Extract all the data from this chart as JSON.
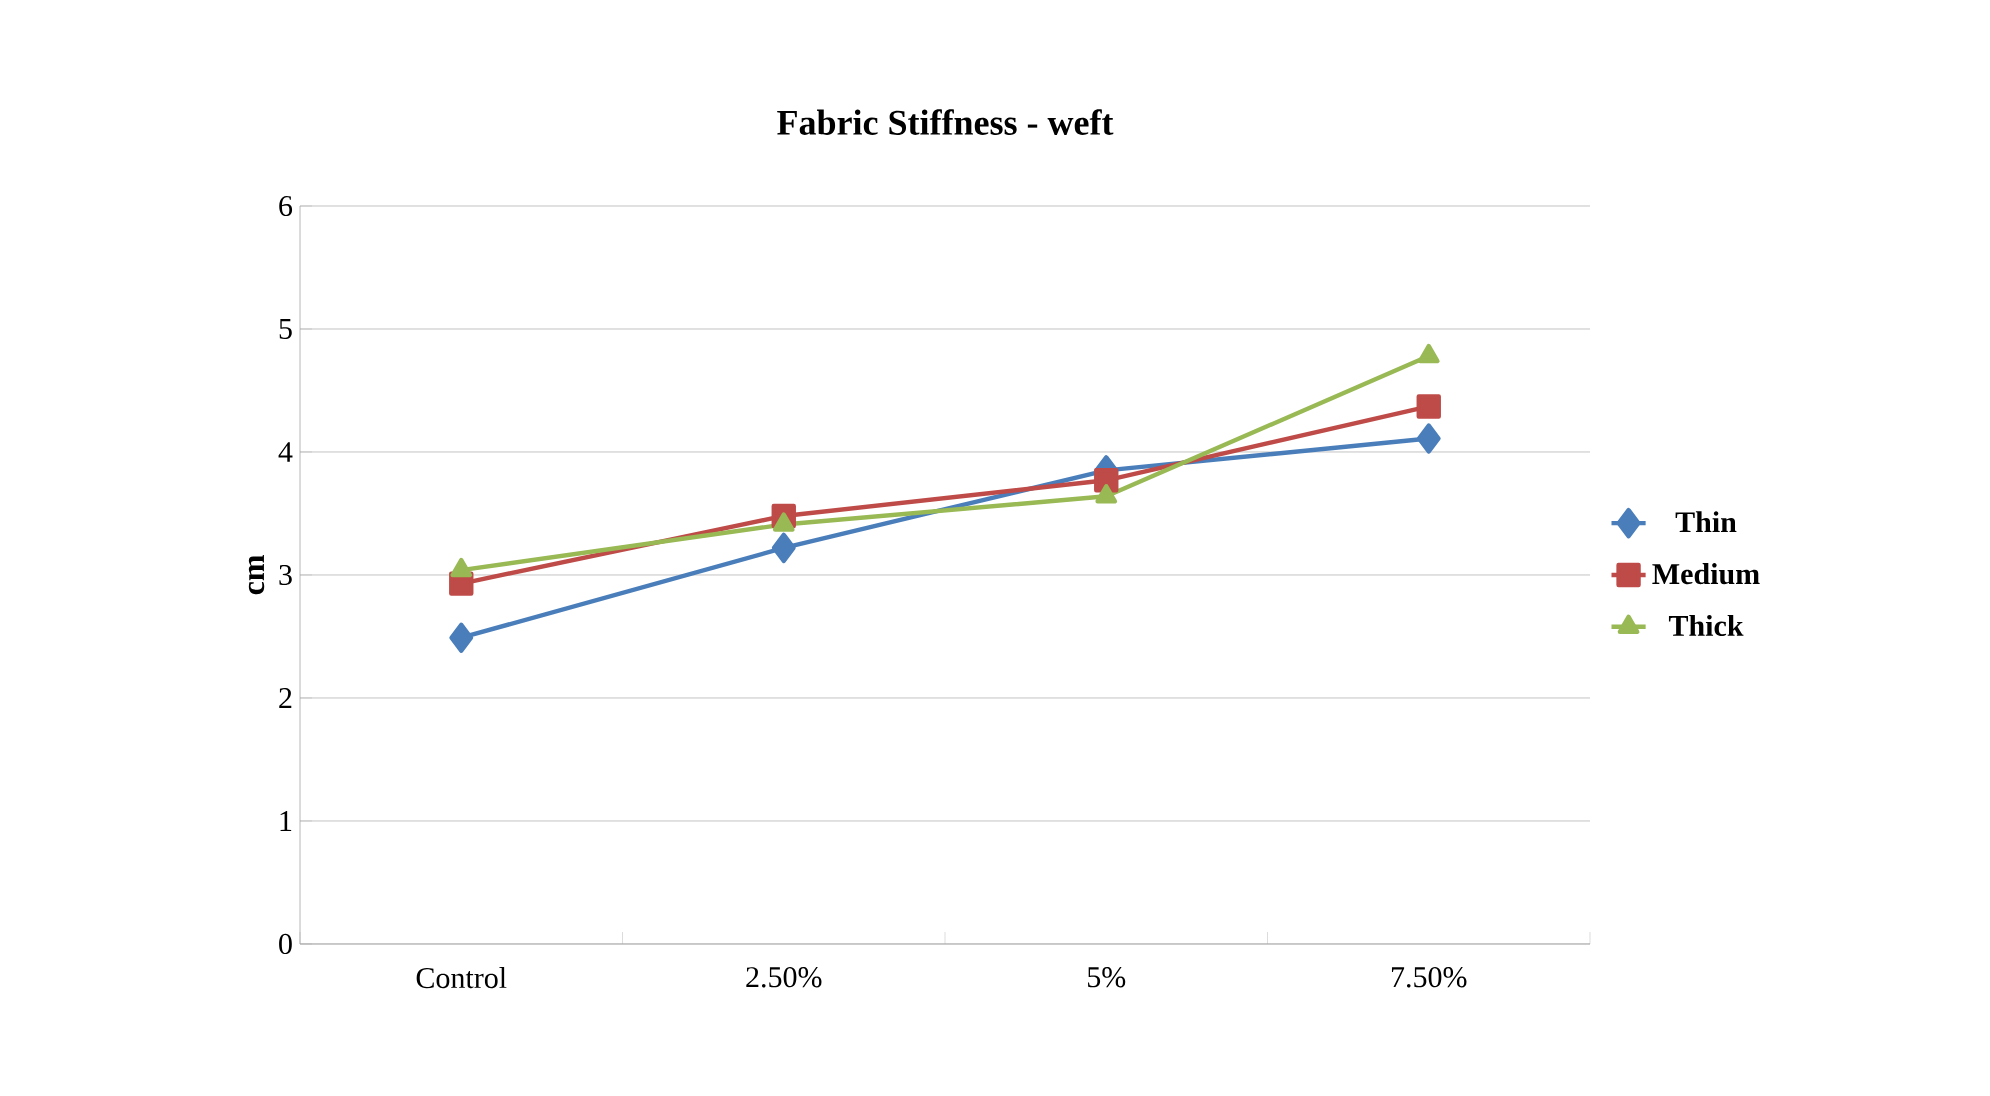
{
  "chart_data": {
    "type": "line",
    "title": "Fabric Stiffness - weft",
    "ylabel": "cm",
    "categories": [
      "Control",
      "2.50%",
      "5%",
      "7.50%"
    ],
    "series": [
      {
        "name": "Thin",
        "color": "#4a7ebb",
        "marker": "diamond",
        "values": [
          2.49,
          3.22,
          3.85,
          4.11
        ]
      },
      {
        "name": "Medium",
        "color": "#be4b48",
        "marker": "square",
        "values": [
          2.93,
          3.48,
          3.77,
          4.37
        ]
      },
      {
        "name": "Thick",
        "color": "#98b954",
        "marker": "triangle",
        "values": [
          3.04,
          3.41,
          3.64,
          4.78
        ]
      }
    ],
    "ylim": [
      0,
      6
    ],
    "yticks": [
      0,
      1,
      2,
      3,
      4,
      5,
      6
    ],
    "grid": "y",
    "legend": "right",
    "line_style": "solid"
  }
}
